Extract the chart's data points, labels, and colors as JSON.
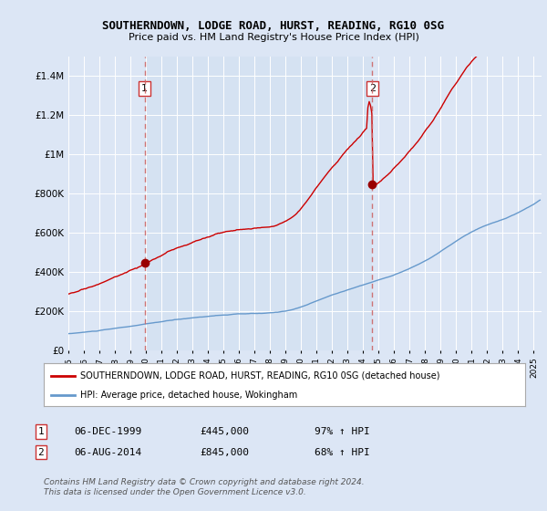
{
  "title": "SOUTHERNDOWN, LODGE ROAD, HURST, READING, RG10 0SG",
  "subtitle": "Price paid vs. HM Land Registry's House Price Index (HPI)",
  "bg_color": "#dce6f5",
  "plot_bg_color": "#dce6f5",
  "grid_color": "#ffffff",
  "ylim": [
    0,
    1500000
  ],
  "yticks": [
    0,
    200000,
    400000,
    600000,
    800000,
    1000000,
    1200000,
    1400000
  ],
  "ytick_labels": [
    "£0",
    "£200K",
    "£400K",
    "£600K",
    "£800K",
    "£1M",
    "£1.2M",
    "£1.4M"
  ],
  "xlim_start": 1995.0,
  "xlim_end": 2025.5,
  "xtick_years": [
    1995,
    1996,
    1997,
    1998,
    1999,
    2000,
    2001,
    2002,
    2003,
    2004,
    2005,
    2006,
    2007,
    2008,
    2009,
    2010,
    2011,
    2012,
    2013,
    2014,
    2015,
    2016,
    2017,
    2018,
    2019,
    2020,
    2021,
    2022,
    2023,
    2024,
    2025
  ],
  "purchase1_x": 1999.92,
  "purchase1_y": 445000,
  "purchase2_x": 2014.59,
  "purchase2_y": 845000,
  "red_line_color": "#cc0000",
  "blue_line_color": "#6699cc",
  "marker_color": "#990000",
  "dashed_color": "#cc6666",
  "note1_date": "06-DEC-1999",
  "note1_price": "£445,000",
  "note1_hpi": "97% ↑ HPI",
  "note2_date": "06-AUG-2014",
  "note2_price": "£845,000",
  "note2_hpi": "68% ↑ HPI",
  "footer": "Contains HM Land Registry data © Crown copyright and database right 2024.\nThis data is licensed under the Open Government Licence v3.0.",
  "legend_line1": "SOUTHERNDOWN, LODGE ROAD, HURST, READING, RG10 0SG (detached house)",
  "legend_line2": "HPI: Average price, detached house, Wokingham"
}
